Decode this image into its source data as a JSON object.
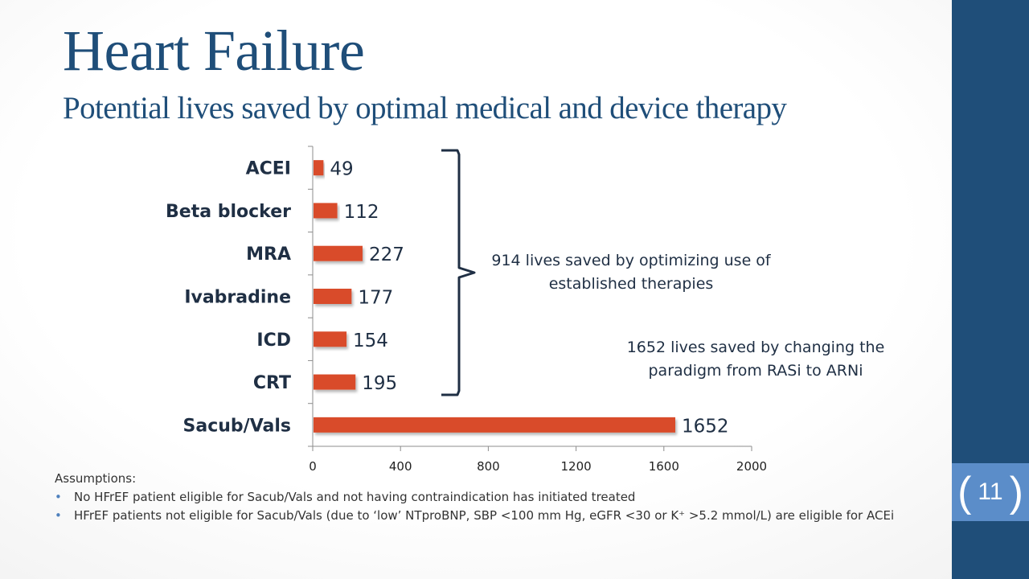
{
  "slide": {
    "title": "Heart Failure",
    "subtitle": "Potential lives saved by optimal medical and device therapy",
    "page_number": "11",
    "colors": {
      "title": "#1f4e79",
      "band": "#1f4e79",
      "page_box": "#5b8dc9",
      "bar": "#d94b2b"
    }
  },
  "annotations": {
    "established": "914 lives saved by optimizing use of established therapies",
    "paradigm": "1652 lives saved by changing the paradigm from RASi to ARNi"
  },
  "assumptions": {
    "heading": "Assumptions:",
    "items": [
      "No HFrEF patient eligible for Sacub/Vals and not having contraindication has initiated treated",
      "HFrEF patients not eligible for Sacub/Vals (due to ‘low’ NTproBNP, SBP <100 mm Hg, eGFR <30 or K⁺ >5.2 mmol/L) are eligible for ACEi"
    ]
  },
  "chart_data": {
    "type": "bar",
    "orientation": "horizontal",
    "categories": [
      "ACEI",
      "Beta blocker",
      "MRA",
      "Ivabradine",
      "ICD",
      "CRT",
      "Sacub/Vals"
    ],
    "values": [
      49,
      112,
      227,
      177,
      154,
      195,
      1652
    ],
    "value_labels": [
      "49",
      "112",
      "227",
      "177",
      "154",
      "195",
      "1652"
    ],
    "xlim": [
      0,
      2000
    ],
    "xticks": [
      0,
      400,
      800,
      1200,
      1600,
      2000
    ],
    "xtick_labels": [
      "0",
      "400",
      "800",
      "1200",
      "1600",
      "2000"
    ],
    "grid": false,
    "bar_color": "#d94b2b",
    "bracket_groups": [
      [
        0,
        5
      ]
    ]
  }
}
